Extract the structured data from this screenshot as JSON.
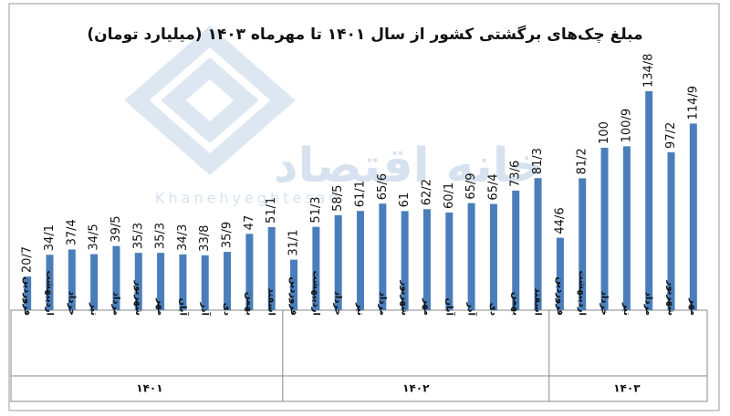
{
  "chart_data": {
    "type": "bar",
    "title": "مبلغ چک‌های برگشتی کشور از سال ۱۴۰۱ تا مهرماه ۱۴۰۳ (میلیارد تومان)",
    "watermark": "خانه اقتصاد",
    "watermark_latin": "Khanehyeghtesad",
    "color": "#4a7ebb",
    "groups": [
      {
        "label": "۱۴۰۱",
        "categories": [
          "فروردین",
          "اردیبهشت",
          "خرداد",
          "تیر",
          "مرداد",
          "شهریور",
          "مهر",
          "آبان",
          "آذر",
          "دی",
          "بهمن",
          "اسفند"
        ],
        "values": [
          20.7,
          34.1,
          37.4,
          34.5,
          39.5,
          35.3,
          35.3,
          34.3,
          33.8,
          35.9,
          47,
          51.1
        ],
        "value_labels": [
          "20/7",
          "34/1",
          "37/4",
          "34/5",
          "39/5",
          "35/3",
          "35/3",
          "34/3",
          "33/8",
          "35/9",
          "47",
          "51/1"
        ]
      },
      {
        "label": "۱۴۰۲",
        "categories": [
          "فروردین",
          "اردیبهشت",
          "خرداد",
          "تیر",
          "مرداد",
          "شهریور",
          "مهر",
          "آبان",
          "آذر",
          "دی",
          "بهمن",
          "اسفند"
        ],
        "values": [
          31.1,
          51.3,
          58.5,
          61.1,
          65.6,
          61,
          62.2,
          60.1,
          65.9,
          65.4,
          73.6,
          81.3
        ],
        "value_labels": [
          "31/1",
          "51/3",
          "58/5",
          "61/1",
          "65/6",
          "61",
          "62/2",
          "60/1",
          "65/9",
          "65/4",
          "73/6",
          "81/3"
        ]
      },
      {
        "label": "۱۴۰۳",
        "categories": [
          "فروردین",
          "اردیبهشت",
          "خرداد",
          "تیر",
          "مرداد",
          "شهریور",
          "مهر"
        ],
        "values": [
          44.6,
          81.2,
          100,
          100.9,
          134.8,
          97.2,
          114.9
        ],
        "value_labels": [
          "44/6",
          "81/2",
          "100",
          "100/9",
          "134/8",
          "97/2",
          "114/9"
        ]
      }
    ]
  }
}
